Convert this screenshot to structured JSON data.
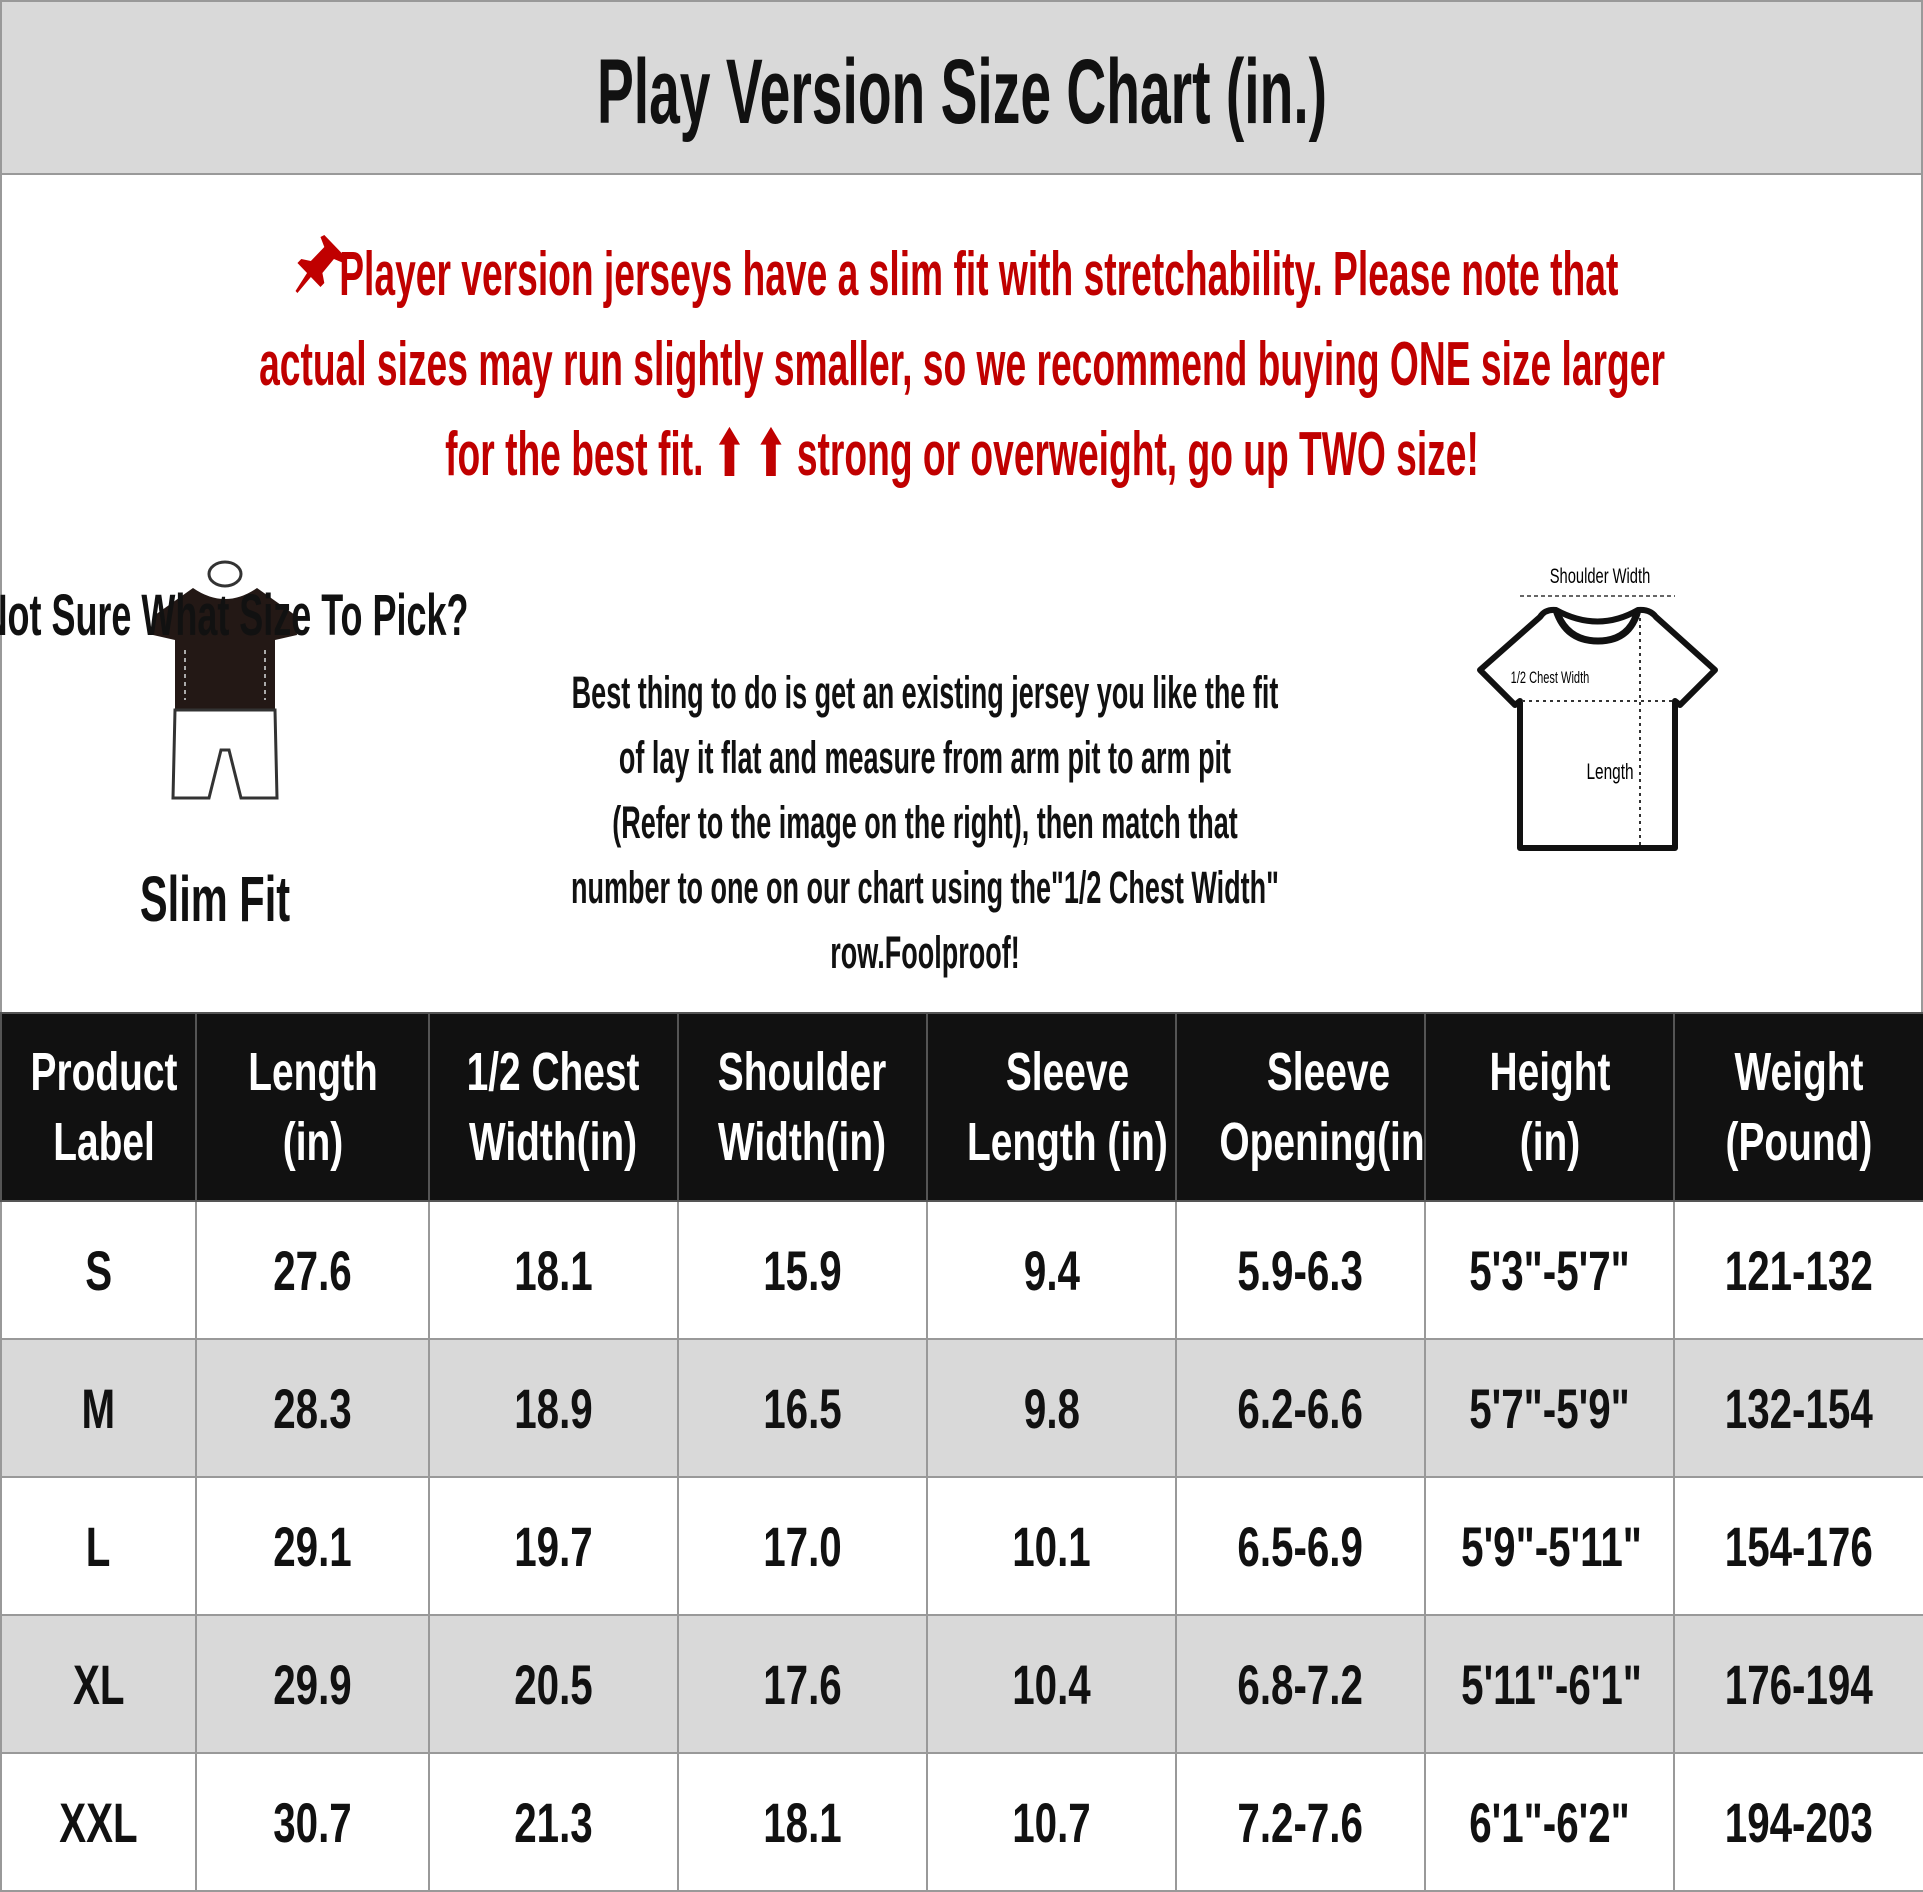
{
  "title": "Play Version Size Chart (in.)",
  "notice": {
    "icon": "pushpin-icon",
    "line1": "Player version jerseys have a slim fit with stretchability. Please note that",
    "line2": "actual sizes may run slightly smaller, so we recommend buying ONE size larger",
    "line3_a": "for the best fit.",
    "arrows": "⬆ ⬆",
    "line3_b": "strong or overweight, go up TWO size!",
    "color": "#c00000"
  },
  "fit": {
    "label": "Slim Fit",
    "icon": "mannequin-icon"
  },
  "help": {
    "heading": "Not Sure What Size To Pick?",
    "lines": [
      "Best thing to do is get an existing jersey you like the fit",
      "of lay it flat and measure from arm pit to arm pit",
      "(Refer to the image on the right), then match that",
      "number to one on our chart using the\"1/2 Chest Width\"",
      "row.Foolproof!"
    ]
  },
  "diagram": {
    "shoulder": "Shoulder Width",
    "chest": "1/2 Chest Width",
    "length": "Length",
    "icon": "tshirt-measurement-icon"
  },
  "table": {
    "headers": [
      [
        "Product",
        "Label"
      ],
      [
        "Length",
        "(in)"
      ],
      [
        "1/2 Chest",
        "Width(in)"
      ],
      [
        "Shoulder",
        "Width(in)"
      ],
      [
        "Sleeve",
        "Length (in)"
      ],
      [
        "Sleeve",
        "Opening(in)"
      ],
      [
        "Height",
        "(in)"
      ],
      [
        "Weight",
        "(Pound)"
      ]
    ],
    "rows": [
      [
        "S",
        "27.6",
        "18.1",
        "15.9",
        "9.4",
        "5.9-6.3",
        "5'3\"-5'7\"",
        "121-132"
      ],
      [
        "M",
        "28.3",
        "18.9",
        "16.5",
        "9.8",
        "6.2-6.6",
        "5'7\"-5'9\"",
        "132-154"
      ],
      [
        "L",
        "29.1",
        "19.7",
        "17.0",
        "10.1",
        "6.5-6.9",
        "5'9\"-5'11\"",
        "154-176"
      ],
      [
        "XL",
        "29.9",
        "20.5",
        "17.6",
        "10.4",
        "6.8-7.2",
        "5'11\"-6'1\"",
        "176-194"
      ],
      [
        "XXL",
        "30.7",
        "21.3",
        "18.1",
        "10.7",
        "7.2-7.6",
        "6'1\"-6'2\"",
        "194-203"
      ]
    ]
  }
}
